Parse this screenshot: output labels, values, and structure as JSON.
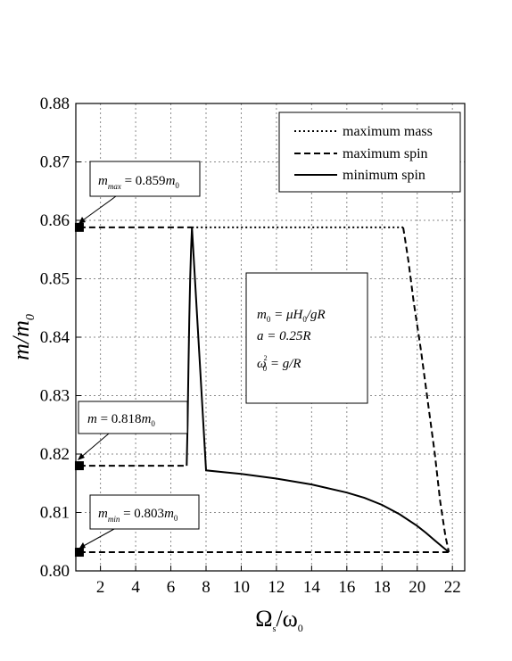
{
  "chart_data": {
    "type": "line",
    "xlabel": "Ω",
    "xlabel_sub1": "s",
    "xlabel_slash": "/ω",
    "xlabel_sub2": "0",
    "ylabel": "m/m",
    "ylabel_sub": "0",
    "xlim": [
      0.6,
      22.7
    ],
    "ylim": [
      0.8,
      0.88
    ],
    "xticks": [
      2,
      4,
      6,
      8,
      10,
      12,
      14,
      16,
      18,
      20,
      22
    ],
    "yticks": [
      0.8,
      0.81,
      0.82,
      0.83,
      0.84,
      0.85,
      0.86,
      0.87,
      0.88
    ],
    "grid": true,
    "legend_position": "top-right",
    "legend": [
      {
        "label": "maximum mass",
        "style": "dotted"
      },
      {
        "label": "maximum spin",
        "style": "dashed"
      },
      {
        "label": "minimum spin",
        "style": "solid"
      }
    ],
    "series": [
      {
        "label": "maximum mass",
        "style": "dotted",
        "x": [
          7.2,
          19.2
        ],
        "y": [
          0.8588,
          0.8588
        ]
      },
      {
        "label": "maximum spin",
        "style": "dashed",
        "x": [
          0.8,
          7.2,
          null,
          0.8,
          6.9,
          null,
          0.8,
          21.8,
          null,
          19.2,
          19.3,
          19.5,
          19.8,
          20.2,
          20.6,
          21.0,
          21.3,
          21.6,
          21.8
        ],
        "y": [
          0.8588,
          0.8588,
          null,
          0.818,
          0.818,
          null,
          0.8032,
          0.8032,
          null,
          0.8588,
          0.857,
          0.853,
          0.846,
          0.838,
          0.829,
          0.82,
          0.812,
          0.806,
          0.8032
        ]
      },
      {
        "label": "minimum spin",
        "style": "solid",
        "x": [
          6.9,
          6.95,
          7.0,
          7.05,
          7.1,
          7.15,
          7.2,
          8,
          10,
          12,
          14,
          16,
          17,
          18,
          19,
          20,
          20.5,
          21,
          21.4,
          21.8
        ],
        "y": [
          0.818,
          0.825,
          0.835,
          0.843,
          0.85,
          0.855,
          0.8588,
          0.8172,
          0.8166,
          0.8158,
          0.8148,
          0.8134,
          0.8125,
          0.8113,
          0.8097,
          0.8077,
          0.8065,
          0.8052,
          0.8042,
          0.8032
        ]
      }
    ],
    "markers": [
      {
        "x": 0.8,
        "y": 0.8588
      },
      {
        "x": 0.8,
        "y": 0.818
      },
      {
        "x": 0.8,
        "y": 0.8032
      }
    ],
    "callouts": [
      {
        "m": "m",
        "sub": "max",
        "eq": " = 0.859",
        "m0": "m",
        "m0sub": "0"
      },
      {
        "m": "m",
        "sub": "",
        "eq": " = 0.818",
        "m0": "m",
        "m0sub": "0"
      },
      {
        "m": "m",
        "sub": "min",
        "eq": " = 0.803",
        "m0": "m",
        "m0sub": "0"
      }
    ],
    "parameters": {
      "line1": {
        "a": "m",
        "a_sub": "0",
        "b": " = μH",
        "b_sub": "0",
        "c": "/gR"
      },
      "line2": {
        "text": "a = 0.25R"
      },
      "line3": {
        "a": "ω",
        "a_sup": "2",
        "a_sub": "0",
        "b": " = g/R"
      }
    }
  }
}
